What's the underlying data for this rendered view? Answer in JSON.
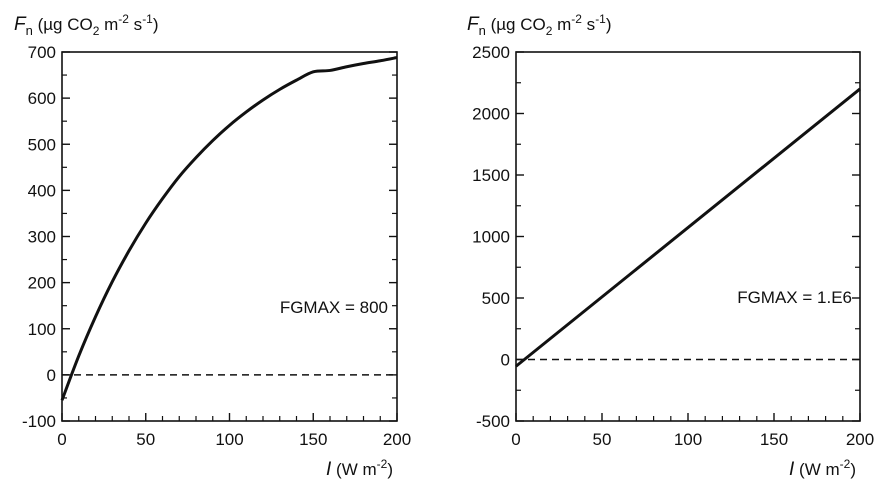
{
  "chart_data": [
    {
      "type": "line",
      "ylabel": {
        "symbol": "F",
        "sub": "n",
        "units": "(µg CO",
        "co2_sub": "2",
        "m_text": " m",
        "m_exp": "-2",
        "s_text": " s",
        "s_exp": "-1",
        "close": ")"
      },
      "xlabel": {
        "symbol": "I",
        "units": "(W m",
        "exp": "-2",
        "close": ")"
      },
      "xlim": [
        0,
        200
      ],
      "ylim": [
        -100,
        700
      ],
      "xticks": [
        0,
        50,
        100,
        150,
        200
      ],
      "yticks": [
        -100,
        0,
        100,
        200,
        300,
        400,
        500,
        600,
        700
      ],
      "xtick_labels": [
        "0",
        "50",
        "100",
        "150",
        "200"
      ],
      "ytick_labels": [
        "-100",
        "0",
        "100",
        "200",
        "300",
        "400",
        "500",
        "600",
        "700"
      ],
      "annotation": "FGMAX = 800",
      "reference_line_y": 0,
      "series": [
        {
          "name": "FGMAX = 800",
          "x": [
            0,
            10,
            20,
            30,
            40,
            50,
            60,
            70,
            80,
            90,
            100,
            110,
            120,
            130,
            140,
            150,
            160,
            170,
            180,
            190,
            200
          ],
          "y": [
            -55,
            41,
            126,
            202,
            269,
            329,
            382,
            430,
            471,
            508,
            541,
            570,
            596,
            619,
            639,
            657,
            660,
            668,
            675,
            681,
            688
          ]
        }
      ]
    },
    {
      "type": "line",
      "ylabel": {
        "symbol": "F",
        "sub": "n",
        "units": "(µg CO",
        "co2_sub": "2",
        "m_text": " m",
        "m_exp": "-2",
        "s_text": " s",
        "s_exp": "-1",
        "close": ")"
      },
      "xlabel": {
        "symbol": "I",
        "units": "(W m",
        "exp": "-2",
        "close": ")"
      },
      "xlim": [
        0,
        200
      ],
      "ylim": [
        -500,
        2500
      ],
      "xticks": [
        0,
        50,
        100,
        150,
        200
      ],
      "yticks": [
        -500,
        0,
        500,
        1000,
        1500,
        2000,
        2500
      ],
      "xtick_labels": [
        "0",
        "50",
        "100",
        "150",
        "200"
      ],
      "ytick_labels": [
        "-500",
        "0",
        "500",
        "1000",
        "1500",
        "2000",
        "2500"
      ],
      "annotation": "FGMAX = 1.E6",
      "reference_line_y": 0,
      "series": [
        {
          "name": "FGMAX = 1.E6",
          "x": [
            0,
            200
          ],
          "y": [
            -55,
            2200
          ]
        }
      ]
    }
  ]
}
